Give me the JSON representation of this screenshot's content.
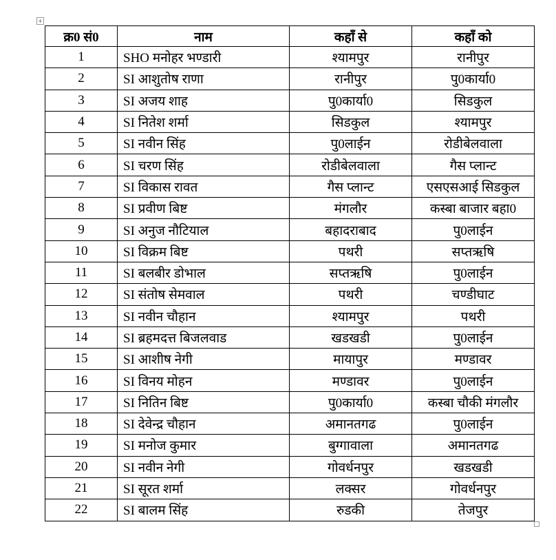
{
  "table": {
    "headers": [
      "क्र0 सं0",
      "नाम",
      "कहाँ से",
      "कहाँ को"
    ],
    "rows": [
      [
        "1",
        "SHO मनोहर भण्डारी",
        "श्यामपुर",
        "रानीपुर"
      ],
      [
        "2",
        "SI आशुतोष राणा",
        "रानीपुर",
        "पु0कार्या0"
      ],
      [
        "3",
        " SI अजय शाह",
        "पु0कार्या0",
        "सिडकुल"
      ],
      [
        "4",
        "SI नितेश शर्मा",
        "सिडकुल",
        "श्यामपुर"
      ],
      [
        "5",
        " SI नवीन सिंह",
        "पु0लाईन",
        "रोडीबेलवाला"
      ],
      [
        "6",
        "SI चरण सिंह",
        "रोडीबेलवाला",
        "गैस प्लान्ट"
      ],
      [
        "7",
        "SI विकास रावत",
        "गैस प्लान्ट",
        "एसएसआई सिडकुल"
      ],
      [
        "8",
        "SI प्रवीण बिष्ट",
        "मंगलौर",
        "कस्बा बाजार बहा0"
      ],
      [
        "9",
        " SI अनुज नौटियाल",
        "बहादराबाद",
        "पु0लाईन"
      ],
      [
        "10",
        "SI विक्रम बिष्ट",
        "पथरी",
        "सप्तऋषि"
      ],
      [
        "11",
        "SI बलबीर डोभाल",
        "सप्तऋषि",
        "पु0लाईन"
      ],
      [
        "12",
        "SI संतोष सेमवाल",
        "पथरी",
        "चण्डीघाट"
      ],
      [
        "13",
        "SI नवीन चौहान",
        "श्यामपुर",
        "पथरी"
      ],
      [
        "14",
        "SI ब्रहमदत्त बिजलवाड",
        "खडखडी",
        "पु0लाईन"
      ],
      [
        "15",
        "SI आशीष नेगी",
        "मायापुर",
        "मण्डावर"
      ],
      [
        "16",
        "SI विनय मोहन",
        "मण्डावर",
        "पु0लाईन"
      ],
      [
        "17",
        " SI नितिन बिष्ट",
        "पु0कार्या0",
        "कस्बा चौकी मंगलौर"
      ],
      [
        "18",
        "SI देवेन्द्र चौहान",
        "अमानतगढ",
        "पु0लाईन"
      ],
      [
        "19",
        "SI मनोज कुमार",
        "बुग्गावाला",
        "अमानतगढ"
      ],
      [
        "20",
        "SI नवीन नेगी",
        "गोवर्धनपुर",
        "खडखडी"
      ],
      [
        "21",
        "SI सूरत शर्मा",
        "लक्सर",
        "गोवर्धनपुर"
      ],
      [
        "22",
        "SI बालम सिंह",
        "रुडकी",
        "तेजपुर"
      ]
    ]
  },
  "icons": {
    "move_handle": "table-move-icon",
    "resize_handle": "table-resize-icon"
  }
}
